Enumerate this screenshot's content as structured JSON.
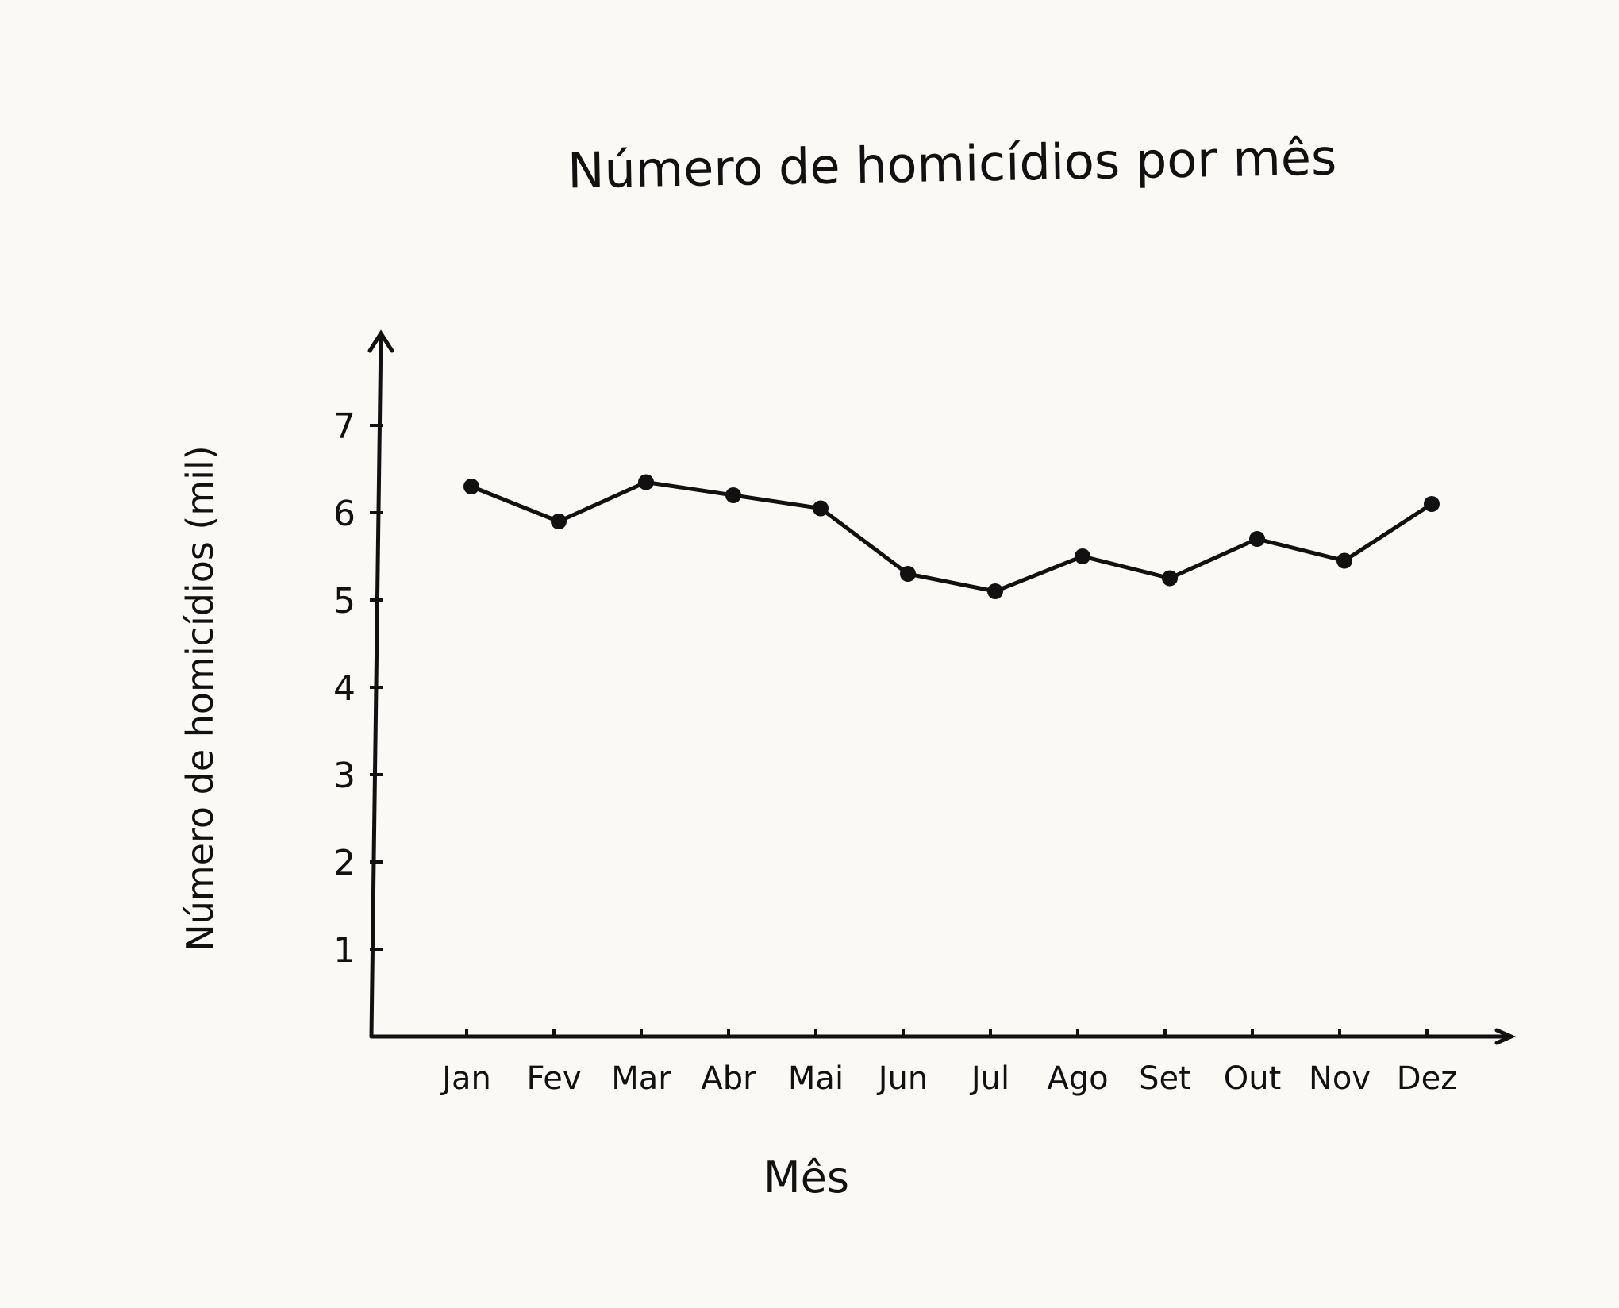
{
  "chart_data": {
    "type": "line",
    "title": "Número de homicídios por mês",
    "xlabel": "Mês",
    "ylabel": "Número de homicídios (mil)",
    "categories": [
      "Jan",
      "Fev",
      "Mar",
      "Abr",
      "Mai",
      "Jun",
      "Jul",
      "Ago",
      "Set",
      "Out",
      "Nov",
      "Dez"
    ],
    "series": [
      {
        "values": [
          6.3,
          5.9,
          6.35,
          6.2,
          6.05,
          5.3,
          5.1,
          5.5,
          5.25,
          5.7,
          5.45,
          6.1
        ]
      }
    ],
    "yticks": [
      "1",
      "2",
      "3",
      "4",
      "5",
      "6",
      "7"
    ],
    "ylim": [
      0,
      7.5
    ],
    "grid": false,
    "legend": "none",
    "colors": {
      "ink": "#111111",
      "paper": "#faf9f6"
    }
  }
}
